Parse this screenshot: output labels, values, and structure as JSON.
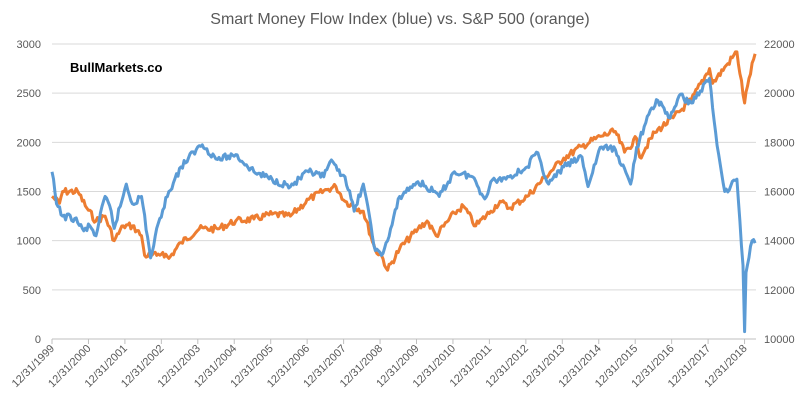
{
  "chart_data": {
    "type": "line",
    "title": "Smart Money Flow Index (blue) vs. S&P 500 (orange)",
    "watermark": "BullMarkets.co",
    "grid": true,
    "legend": "none",
    "x_tick_labels": [
      "12/31/1999",
      "12/31/2000",
      "12/31/2001",
      "12/31/2002",
      "12/31/2003",
      "12/31/2004",
      "12/31/2005",
      "12/31/2006",
      "12/31/2007",
      "12/31/2008",
      "12/31/2009",
      "12/31/2010",
      "12/31/2011",
      "12/31/2012",
      "12/31/2013",
      "12/31/2014",
      "12/31/2015",
      "12/31/2016",
      "12/31/2017",
      "12/31/2018"
    ],
    "left_axis": {
      "ylim": [
        0,
        3000
      ],
      "ticks": [
        "0",
        "500",
        "1000",
        "1500",
        "2000",
        "2500",
        "3000"
      ]
    },
    "right_axis": {
      "ylim": [
        10000,
        22000
      ],
      "ticks": [
        "10000",
        "12000",
        "14000",
        "16000",
        "18000",
        "20000",
        "22000"
      ]
    },
    "series": [
      {
        "axis": "right",
        "color": "#5b9bd5",
        "points": [
          [
            "1999-12-31",
            16800
          ],
          [
            "2000-02",
            15500
          ],
          [
            "2000-04",
            15000
          ],
          [
            "2000-08",
            14900
          ],
          [
            "2000-11",
            14400
          ],
          [
            "2001-01",
            14600
          ],
          [
            "2001-03",
            14200
          ],
          [
            "2001-06",
            15800
          ],
          [
            "2001-08",
            15200
          ],
          [
            "2001-09",
            14500
          ],
          [
            "2002-01",
            16300
          ],
          [
            "2002-03",
            15500
          ],
          [
            "2002-06",
            15800
          ],
          [
            "2002-09",
            13300
          ],
          [
            "2002-12",
            14900
          ],
          [
            "2003-03",
            16000
          ],
          [
            "2003-07",
            17000
          ],
          [
            "2003-12",
            17700
          ],
          [
            "2004-02",
            17900
          ],
          [
            "2004-07",
            17300
          ],
          [
            "2005-01",
            17500
          ],
          [
            "2005-07",
            16800
          ],
          [
            "2006-01",
            16500
          ],
          [
            "2006-07",
            16200
          ],
          [
            "2007-01",
            16800
          ],
          [
            "2007-06",
            16600
          ],
          [
            "2007-08",
            17200
          ],
          [
            "2008-01",
            16600
          ],
          [
            "2008-04",
            15200
          ],
          [
            "2008-07",
            16300
          ],
          [
            "2008-11",
            13600
          ],
          [
            "2009-01",
            13400
          ],
          [
            "2009-03",
            14000
          ],
          [
            "2009-07",
            15800
          ],
          [
            "2010-01",
            16400
          ],
          [
            "2010-06",
            16000
          ],
          [
            "2010-08",
            15800
          ],
          [
            "2011-01",
            16800
          ],
          [
            "2011-07",
            16600
          ],
          [
            "2011-11",
            15700
          ],
          [
            "2012-01",
            16400
          ],
          [
            "2012-07",
            16600
          ],
          [
            "2013-01",
            17000
          ],
          [
            "2013-04",
            17600
          ],
          [
            "2013-08",
            16300
          ],
          [
            "2014-01",
            17000
          ],
          [
            "2014-07",
            17400
          ],
          [
            "2014-09",
            16200
          ],
          [
            "2015-01",
            17800
          ],
          [
            "2015-06",
            17700
          ],
          [
            "2015-11",
            16300
          ],
          [
            "2016-01",
            17800
          ],
          [
            "2016-06",
            19400
          ],
          [
            "2016-08",
            19700
          ],
          [
            "2016-12",
            19000
          ],
          [
            "2017-03",
            19900
          ],
          [
            "2017-07",
            19600
          ],
          [
            "2018-01",
            20600
          ],
          [
            "2018-02",
            19400
          ],
          [
            "2018-04",
            17500
          ],
          [
            "2018-06",
            16000
          ],
          [
            "2018-10",
            16500
          ],
          [
            "2018-11",
            14800
          ],
          [
            "2018-12",
            13000
          ],
          [
            "2018-12-31",
            10300
          ],
          [
            "2019-01",
            12700
          ],
          [
            "2019-03",
            14000
          ],
          [
            "2019-04",
            13900
          ]
        ]
      },
      {
        "axis": "left",
        "color": "#ed7d31",
        "points": [
          [
            "1999-12-31",
            1450
          ],
          [
            "2000-03",
            1380
          ],
          [
            "2000-04",
            1500
          ],
          [
            "2000-09",
            1500
          ],
          [
            "2000-12",
            1330
          ],
          [
            "2001-03",
            1200
          ],
          [
            "2001-06",
            1250
          ],
          [
            "2001-09",
            1000
          ],
          [
            "2001-12",
            1150
          ],
          [
            "2002-03",
            1150
          ],
          [
            "2002-06",
            1050
          ],
          [
            "2002-07",
            850
          ],
          [
            "2002-11",
            850
          ],
          [
            "2003-01",
            880
          ],
          [
            "2003-03",
            820
          ],
          [
            "2003-07",
            980
          ],
          [
            "2004-01",
            1120
          ],
          [
            "2004-07",
            1120
          ],
          [
            "2005-01",
            1200
          ],
          [
            "2005-07",
            1220
          ],
          [
            "2006-01",
            1270
          ],
          [
            "2006-07",
            1250
          ],
          [
            "2007-01",
            1420
          ],
          [
            "2007-07",
            1520
          ],
          [
            "2007-10",
            1550
          ],
          [
            "2008-01",
            1400
          ],
          [
            "2008-07",
            1300
          ],
          [
            "2008-11",
            900
          ],
          [
            "2009-01",
            850
          ],
          [
            "2009-03",
            700
          ],
          [
            "2009-07",
            920
          ],
          [
            "2010-01",
            1120
          ],
          [
            "2010-04",
            1200
          ],
          [
            "2010-07",
            1050
          ],
          [
            "2011-01",
            1280
          ],
          [
            "2011-04",
            1350
          ],
          [
            "2011-08",
            1150
          ],
          [
            "2012-01",
            1300
          ],
          [
            "2012-04",
            1400
          ],
          [
            "2012-07",
            1330
          ],
          [
            "2013-01",
            1450
          ],
          [
            "2013-07",
            1650
          ],
          [
            "2014-01",
            1840
          ],
          [
            "2014-07",
            1960
          ],
          [
            "2015-01",
            2060
          ],
          [
            "2015-06",
            2110
          ],
          [
            "2015-09",
            1900
          ],
          [
            "2016-01",
            2040
          ],
          [
            "2016-02",
            1850
          ],
          [
            "2016-07",
            2100
          ],
          [
            "2017-01",
            2250
          ],
          [
            "2017-07",
            2430
          ],
          [
            "2018-01",
            2750
          ],
          [
            "2018-02",
            2600
          ],
          [
            "2018-07",
            2800
          ],
          [
            "2018-10",
            2920
          ],
          [
            "2018-12-31",
            2400
          ],
          [
            "2019-02",
            2650
          ],
          [
            "2019-04",
            2900
          ]
        ]
      }
    ]
  }
}
